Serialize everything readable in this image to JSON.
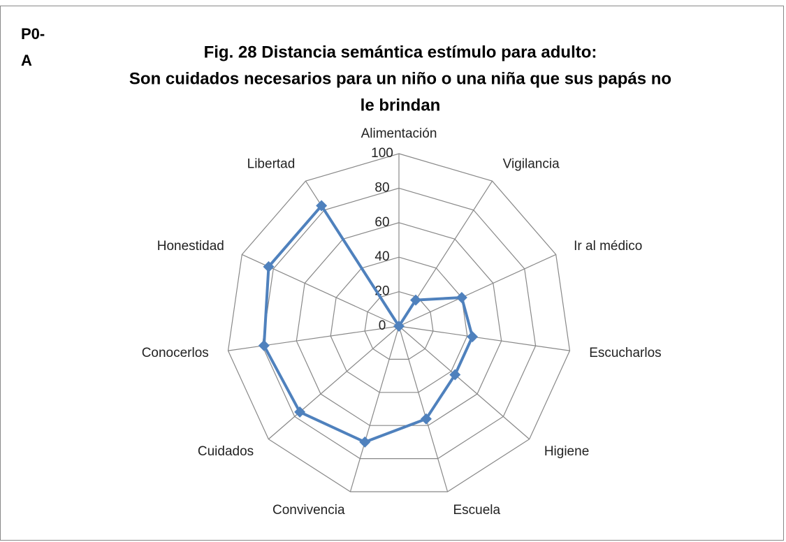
{
  "label": "P0-A",
  "chart_data": {
    "type": "radar",
    "title": [
      "Fig. 28 Distancia semántica estímulo para adulto:",
      "Son cuidados necesarios para un niño o una niña que sus papás no",
      "le brindan"
    ],
    "categories": [
      "Alimentación",
      "Vigilancia",
      "Ir al médico",
      "Escucharlos",
      "Higiene",
      "Escuela",
      "Convivencia",
      "Cuidados",
      "Conocerlos",
      "Honestidad",
      "Libertad"
    ],
    "series": [
      {
        "color": "#4f81bd",
        "values": [
          0,
          18,
          40,
          43,
          43,
          56,
          70,
          76,
          79,
          83,
          83
        ]
      }
    ],
    "ylim": [
      0,
      100
    ],
    "yticks": [
      0,
      20,
      40,
      60,
      80,
      100
    ],
    "grid": true
  }
}
